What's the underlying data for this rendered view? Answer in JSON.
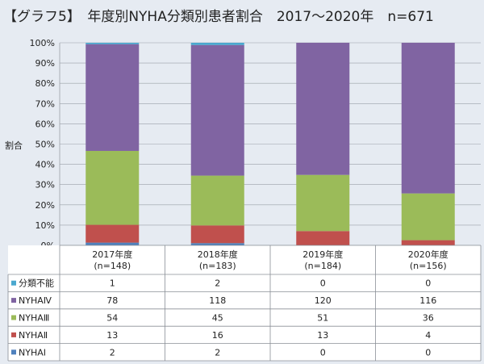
{
  "title": "【グラフ5】　年度別NYHA分類別患者割合　2017～2020年　n=671",
  "colors": {
    "background": "#e6ebf2",
    "table_fill": "#ffffff",
    "grid": "#9aa0a8"
  },
  "chart_data": {
    "type": "bar",
    "stacked": true,
    "normalized": true,
    "ylabel": "割合",
    "ylim": [
      0,
      100
    ],
    "yticks": [
      "0%",
      "10%",
      "20%",
      "30%",
      "40%",
      "50%",
      "60%",
      "70%",
      "80%",
      "90%",
      "100%"
    ],
    "categories": [
      {
        "line1": "2017年度",
        "line2": "(n=148)"
      },
      {
        "line1": "2018年度",
        "line2": "(n=183)"
      },
      {
        "line1": "2019年度",
        "line2": "(n=184)"
      },
      {
        "line1": "2020年度",
        "line2": "(n=156)"
      }
    ],
    "series": [
      {
        "name": "分類不能",
        "color": "#4aa8cf",
        "values": [
          1,
          2,
          0,
          0
        ]
      },
      {
        "name": "NYHAⅣ",
        "color": "#8064a2",
        "values": [
          78,
          118,
          120,
          116
        ]
      },
      {
        "name": "NYHAⅢ",
        "color": "#9bbb59",
        "values": [
          54,
          45,
          51,
          36
        ]
      },
      {
        "name": "NYHAⅡ",
        "color": "#c0504d",
        "values": [
          13,
          16,
          13,
          4
        ]
      },
      {
        "name": "NYHAⅠ",
        "color": "#4f81bd",
        "values": [
          2,
          2,
          0,
          0
        ]
      }
    ],
    "legend": "table-rows"
  }
}
